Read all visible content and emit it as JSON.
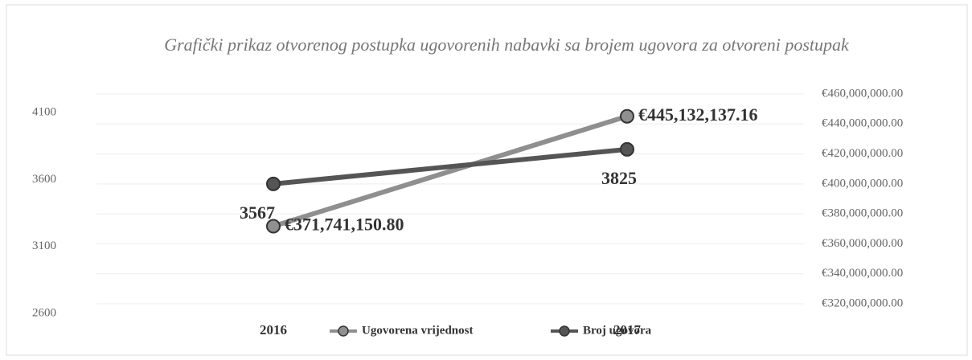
{
  "chart_data": {
    "type": "line",
    "title": "Grafički prikaz otvorenog postupka ugovorenih nabavki sa brojem ugovora za otvoreni postupak",
    "categories": [
      "2016",
      "2017"
    ],
    "series": [
      {
        "name": "Ugovorena vrijednost",
        "color": "#8f8f8f",
        "axis": "y2",
        "values": [
          371741150.8,
          445132137.16
        ],
        "value_labels": [
          "€371,741,150.80",
          "€445,132,137.16"
        ]
      },
      {
        "name": "Broj ugovora",
        "color": "#555555",
        "values": [
          3567,
          3825
        ]
      }
    ],
    "ylim": [
      2600,
      4100
    ],
    "yticks": [
      2600,
      3100,
      3600,
      4100
    ],
    "y2lim": [
      320000000,
      460000000
    ],
    "y2ticks": [
      {
        "value": 320000000,
        "label": "€320,000,000.00"
      },
      {
        "value": 340000000,
        "label": "€340,000,000.00"
      },
      {
        "value": 360000000,
        "label": "€360,000,000.00"
      },
      {
        "value": 380000000,
        "label": "€380,000,000.00"
      },
      {
        "value": 400000000,
        "label": "€400,000,000.00"
      },
      {
        "value": 420000000,
        "label": "€420,000,000.00"
      },
      {
        "value": 440000000,
        "label": "€440,000,000.00"
      },
      {
        "value": 460000000,
        "label": "€460,000,000.00"
      }
    ],
    "legend": "bottom"
  }
}
